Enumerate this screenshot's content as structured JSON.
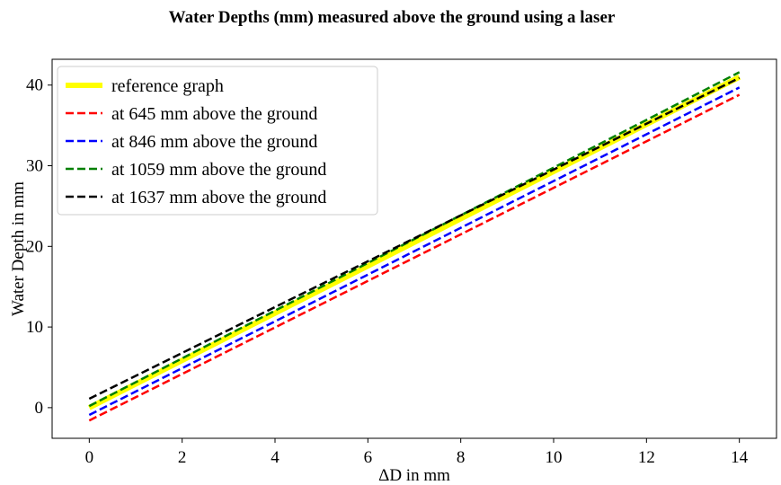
{
  "chart_data": {
    "type": "line",
    "title": "Water Depths (mm) measured above the ground using a laser",
    "xlabel": "ΔD in mm",
    "ylabel": "Water Depth in mm",
    "xlim": [
      -0.8,
      14.8
    ],
    "ylim": [
      -3.8,
      43.2
    ],
    "xticks": [
      0,
      2,
      4,
      6,
      8,
      10,
      12,
      14
    ],
    "yticks": [
      0,
      10,
      20,
      30,
      40
    ],
    "grid": false,
    "legend_position": "top-left",
    "series": [
      {
        "name": "reference graph",
        "color": "#ffff00",
        "dash": "solid",
        "width": 6,
        "x": [
          0,
          14
        ],
        "y": [
          0,
          41
        ]
      },
      {
        "name": "at 645 mm above the ground",
        "color": "#ff0000",
        "dash": "dashed",
        "width": 2.5,
        "x": [
          0,
          14
        ],
        "y": [
          -1.6,
          38.8
        ]
      },
      {
        "name": "at 846 mm above the ground",
        "color": "#0000ff",
        "dash": "dashed",
        "width": 2.5,
        "x": [
          0,
          14
        ],
        "y": [
          -0.9,
          39.7
        ]
      },
      {
        "name": "at 1059 mm above the ground",
        "color": "#008000",
        "dash": "dashed",
        "width": 2.5,
        "x": [
          0,
          14
        ],
        "y": [
          0.2,
          41.6
        ]
      },
      {
        "name": "at 1637 mm above the ground",
        "color": "#000000",
        "dash": "dashed",
        "width": 2.5,
        "x": [
          0,
          14
        ],
        "y": [
          1.1,
          40.9
        ]
      }
    ]
  }
}
